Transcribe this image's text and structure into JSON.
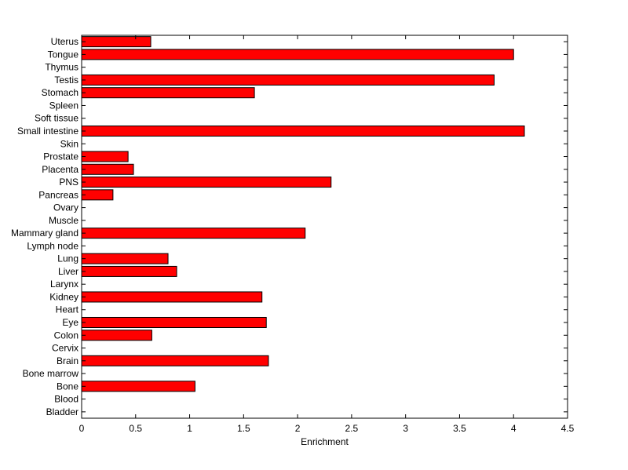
{
  "chart_data": {
    "type": "bar",
    "orientation": "horizontal",
    "xlabel": "Enrichment",
    "ylabel": "",
    "title": "",
    "xlim": [
      0,
      4.5
    ],
    "xticks": [
      "0",
      "0.5",
      "1",
      "1.5",
      "2",
      "2.5",
      "3",
      "3.5",
      "4",
      "4.5"
    ],
    "grid": false,
    "bar_color": "#ff0000",
    "categories": [
      "Uterus",
      "Tongue",
      "Thymus",
      "Testis",
      "Stomach",
      "Spleen",
      "Soft tissue",
      "Small intestine",
      "Skin",
      "Prostate",
      "Placenta",
      "PNS",
      "Pancreas",
      "Ovary",
      "Muscle",
      "Mammary gland",
      "Lymph node",
      "Lung",
      "Liver",
      "Larynx",
      "Kidney",
      "Heart",
      "Eye",
      "Colon",
      "Cervix",
      "Brain",
      "Bone marrow",
      "Bone",
      "Blood",
      "Bladder"
    ],
    "values": [
      0.64,
      4.0,
      0,
      3.82,
      1.6,
      0,
      0,
      4.1,
      0,
      0.43,
      0.48,
      2.31,
      0.29,
      0,
      0,
      2.07,
      0,
      0.8,
      0.88,
      0,
      1.67,
      0,
      1.71,
      0.65,
      0,
      1.73,
      0,
      1.05,
      0,
      0
    ]
  }
}
